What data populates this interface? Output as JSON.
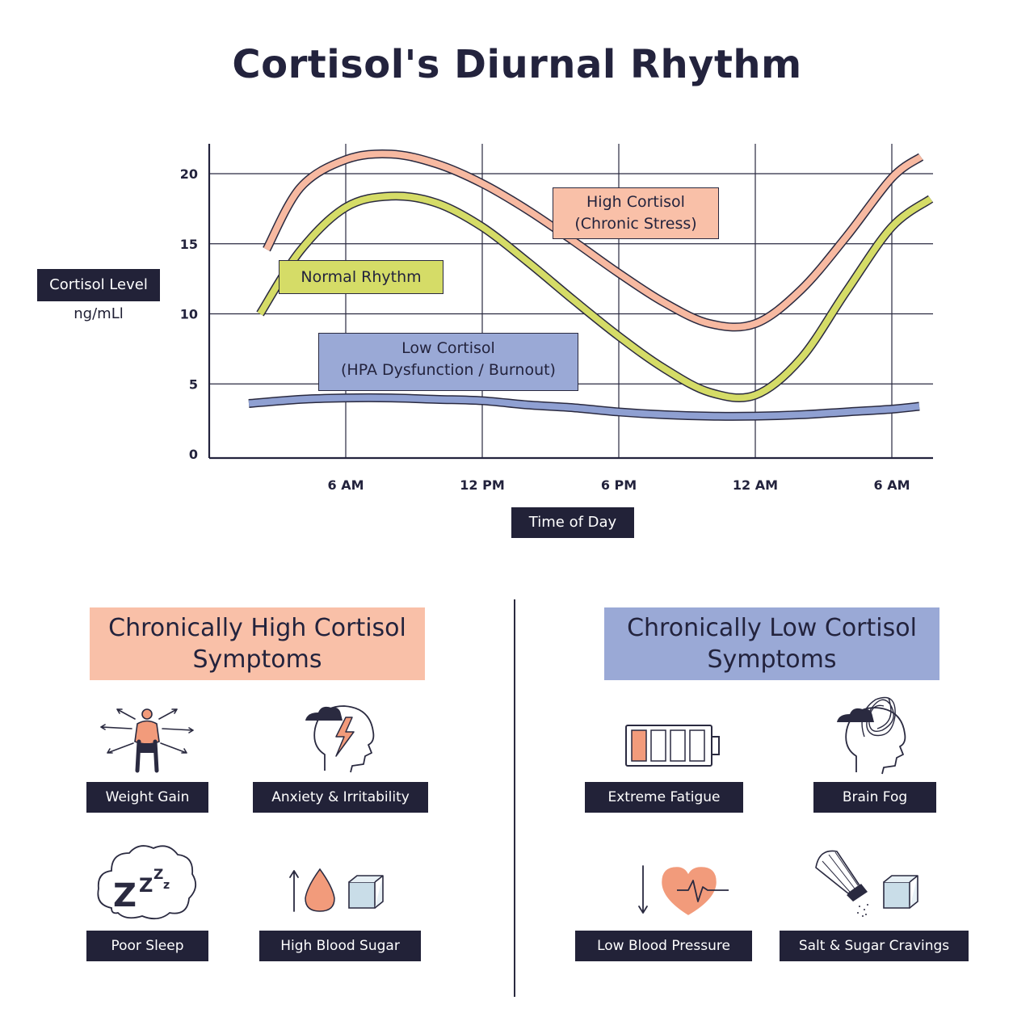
{
  "title": "Cortisol's Diurnal Rhythm",
  "colors": {
    "high": "#f7b9a1",
    "normal": "#d5dc67",
    "low": "#8fa0d2",
    "dark": "#222238"
  },
  "chart_data": {
    "type": "line",
    "title": "Cortisol's Diurnal Rhythm",
    "ylabel": "Cortisol Level",
    "yunit": "ng/mLl",
    "xlabel": "Time of Day",
    "x_tick_labels": [
      "6 AM",
      "12 PM",
      "6 PM",
      "12 AM",
      "6 AM"
    ],
    "y_ticks": [
      0,
      5,
      10,
      15,
      20
    ],
    "ylim": [
      0,
      22
    ],
    "grid": true,
    "x": [
      "2 AM",
      "4 AM",
      "6 AM",
      "8 AM",
      "10 AM",
      "12 PM",
      "2 PM",
      "4 PM",
      "6 PM",
      "8 PM",
      "10 PM",
      "12 AM",
      "2 AM",
      "4 AM",
      "6 AM",
      "7 AM"
    ],
    "series": [
      {
        "name": "High Cortisol (Chronic Stress)",
        "values": [
          14.6,
          19.0,
          21.0,
          21.4,
          20.7,
          19.3,
          17.4,
          15.2,
          12.9,
          10.8,
          9.3,
          9.3,
          11.7,
          15.5,
          19.7,
          21.2
        ]
      },
      {
        "name": "Normal Rhythm",
        "values": [
          10.0,
          14.5,
          17.6,
          18.4,
          17.9,
          16.2,
          13.7,
          11.0,
          8.4,
          6.1,
          4.4,
          4.2,
          6.8,
          11.6,
          16.2,
          18.2
        ]
      },
      {
        "name": "Low Cortisol (HPA Dysfunction / Burnout)",
        "values": [
          3.6,
          3.9,
          4.0,
          4.0,
          3.9,
          3.8,
          3.5,
          3.3,
          3.0,
          2.8,
          2.7,
          2.7,
          2.8,
          3.0,
          3.2,
          3.4
        ]
      }
    ],
    "annotations": {
      "high_line1": "High Cortisol",
      "high_line2": "(Chronic Stress)",
      "normal": "Normal Rhythm",
      "low_line1": "Low Cortisol",
      "low_line2": "(HPA Dysfunction / Burnout)"
    }
  },
  "panels": {
    "high": {
      "title_line1": "Chronically High Cortisol",
      "title_line2": "Symptoms",
      "symptoms": [
        "Weight Gain",
        "Anxiety & Irritability",
        "Poor Sleep",
        "High Blood Sugar"
      ]
    },
    "low": {
      "title_line1": "Chronically Low Cortisol",
      "title_line2": "Symptoms",
      "symptoms": [
        "Extreme Fatigue",
        "Brain Fog",
        "Low Blood Pressure",
        "Salt & Sugar Cravings"
      ]
    }
  },
  "icons": [
    "person-outward-arrows-icon",
    "head-lightning-icon",
    "sleep-cloud-zzz-icon",
    "arrow-drop-cube-icon",
    "low-battery-icon",
    "head-scribble-icon",
    "heart-pulse-down-arrow-icon",
    "salt-shaker-cube-icon"
  ]
}
